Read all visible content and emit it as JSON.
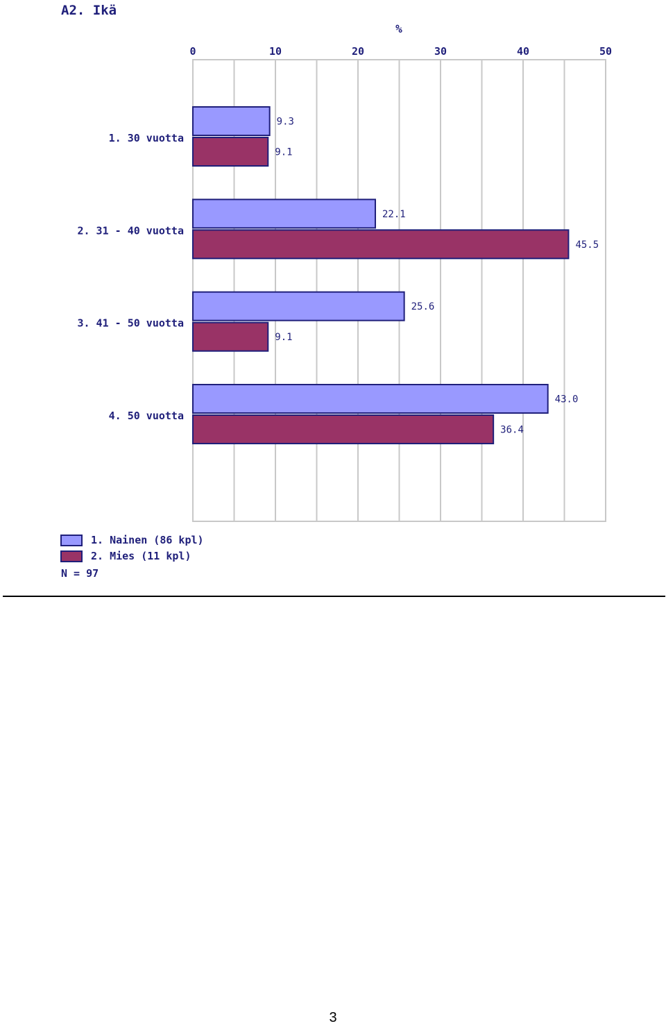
{
  "chart_data": {
    "type": "bar",
    "orientation": "horizontal",
    "title": "A2. Ikä",
    "xlabel": "%",
    "xlim": [
      0,
      50
    ],
    "xticks": [
      0,
      10,
      20,
      30,
      40,
      50
    ],
    "categories": [
      "1.   30 vuotta",
      "2. 31 - 40 vuotta",
      "3. 41 - 50 vuotta",
      "4. 50   vuotta"
    ],
    "series": [
      {
        "name": "1. Nainen  (86 kpl)",
        "color": "#9999ff",
        "values": [
          9.3,
          22.1,
          25.6,
          43.0
        ],
        "labels": [
          "9.3",
          "22.1",
          "25.6",
          "43.0"
        ]
      },
      {
        "name": "2. Mies  (11 kpl)",
        "color": "#993366",
        "values": [
          9.1,
          45.5,
          9.1,
          36.4
        ],
        "labels": [
          "9.1",
          "45.5",
          "9.1",
          "36.4"
        ]
      }
    ],
    "note": "N = 97",
    "grid": true,
    "legend": "bottom-left"
  },
  "page": {
    "number": "3"
  }
}
